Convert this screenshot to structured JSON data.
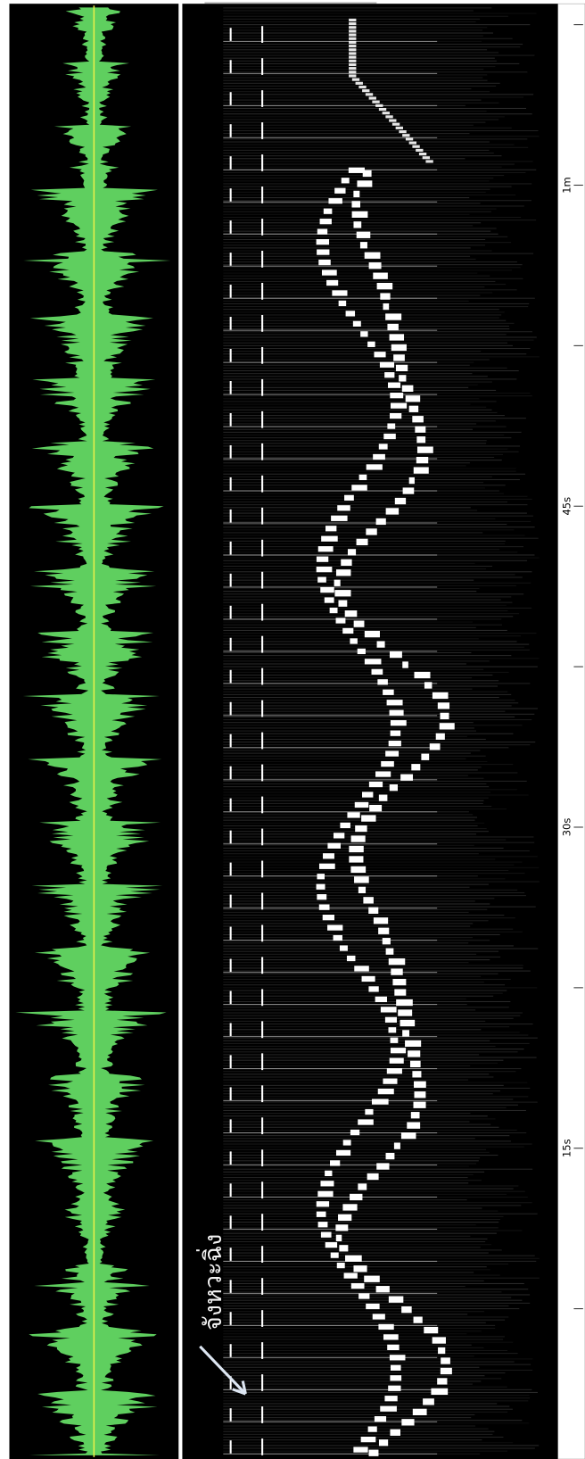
{
  "time_axis": {
    "labels": [
      "15s",
      "30s",
      "45s",
      "1m"
    ]
  },
  "annotation": "จังหวะฉิ่ง"
}
